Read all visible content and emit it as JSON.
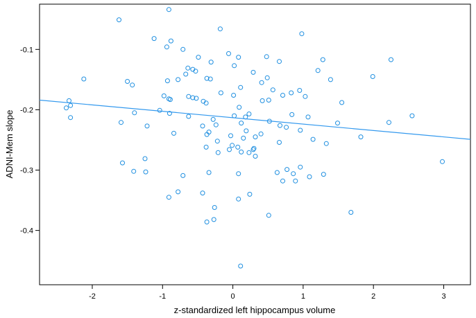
{
  "chart_data": {
    "type": "scatter",
    "title": "",
    "xlabel": "z-standardized left hippocampus volume",
    "ylabel": "ADNI-Mem slope",
    "xlim": [
      -2.75,
      3.38
    ],
    "ylim": [
      -0.49,
      -0.025
    ],
    "xticks": [
      -2,
      -1,
      0,
      1,
      2,
      3
    ],
    "yticks": [
      -0.1,
      -0.2,
      -0.3,
      -0.4
    ],
    "xtick_labels": [
      "-2",
      "-1",
      "0",
      "1",
      "2",
      "3"
    ],
    "ytick_labels": [
      "-0.1",
      "-0.2",
      "-0.3",
      "-0.4"
    ],
    "grid": false,
    "point_color": "#1f8fe0",
    "line_color": "#3399ee",
    "regression_line": {
      "x": [
        -2.75,
        3.38
      ],
      "y": [
        -0.184,
        -0.249
      ]
    },
    "points": [
      [
        -0.91,
        -0.034
      ],
      [
        -1.62,
        -0.051
      ],
      [
        -0.18,
        -0.066
      ],
      [
        0.98,
        -0.074
      ],
      [
        -1.12,
        -0.082
      ],
      [
        -0.88,
        -0.086
      ],
      [
        -0.94,
        -0.096
      ],
      [
        -0.71,
        -0.1
      ],
      [
        -0.06,
        -0.107
      ],
      [
        -0.49,
        -0.113
      ],
      [
        0.08,
        -0.113
      ],
      [
        0.48,
        -0.112
      ],
      [
        1.28,
        -0.117
      ],
      [
        2.25,
        -0.117
      ],
      [
        0.66,
        -0.12
      ],
      [
        -0.31,
        -0.121
      ],
      [
        0.02,
        -0.127
      ],
      [
        -0.64,
        -0.131
      ],
      [
        -0.57,
        -0.133
      ],
      [
        -0.53,
        -0.136
      ],
      [
        1.21,
        -0.135
      ],
      [
        0.29,
        -0.138
      ],
      [
        -0.67,
        -0.141
      ],
      [
        -2.12,
        -0.149
      ],
      [
        -1.5,
        -0.153
      ],
      [
        -0.78,
        -0.15
      ],
      [
        -0.37,
        -0.148
      ],
      [
        -0.32,
        -0.149
      ],
      [
        0.49,
        -0.147
      ],
      [
        1.39,
        -0.15
      ],
      [
        -0.93,
        -0.152
      ],
      [
        1.99,
        -0.145
      ],
      [
        -1.43,
        -0.159
      ],
      [
        0.11,
        -0.163
      ],
      [
        0.41,
        -0.155
      ],
      [
        0.57,
        -0.167
      ],
      [
        0.95,
        -0.168
      ],
      [
        -0.17,
        -0.172
      ],
      [
        0.83,
        -0.172
      ],
      [
        0.01,
        -0.176
      ],
      [
        0.71,
        -0.176
      ],
      [
        1.03,
        -0.178
      ],
      [
        -0.98,
        -0.177
      ],
      [
        -0.63,
        -0.178
      ],
      [
        -0.57,
        -0.18
      ],
      [
        -0.52,
        -0.181
      ],
      [
        -0.91,
        -0.182
      ],
      [
        -0.89,
        -0.183
      ],
      [
        0.42,
        -0.185
      ],
      [
        0.51,
        -0.184
      ],
      [
        -0.42,
        -0.186
      ],
      [
        -0.38,
        -0.189
      ],
      [
        1.55,
        -0.188
      ],
      [
        -2.33,
        -0.185
      ],
      [
        -2.31,
        -0.193
      ],
      [
        -2.37,
        -0.197
      ],
      [
        -1.04,
        -0.201
      ],
      [
        -1.4,
        -0.205
      ],
      [
        0.09,
        -0.196
      ],
      [
        -0.9,
        -0.206
      ],
      [
        0.23,
        -0.207
      ],
      [
        0.84,
        -0.208
      ],
      [
        -0.63,
        -0.211
      ],
      [
        0.02,
        -0.21
      ],
      [
        0.18,
        -0.212
      ],
      [
        1.07,
        -0.212
      ],
      [
        2.55,
        -0.21
      ],
      [
        -2.31,
        -0.213
      ],
      [
        -0.28,
        -0.216
      ],
      [
        0.52,
        -0.219
      ],
      [
        -1.59,
        -0.221
      ],
      [
        0.12,
        -0.222
      ],
      [
        1.49,
        -0.222
      ],
      [
        2.22,
        -0.221
      ],
      [
        -0.24,
        -0.225
      ],
      [
        -0.43,
        -0.227
      ],
      [
        -1.22,
        -0.227
      ],
      [
        0.67,
        -0.226
      ],
      [
        0.76,
        -0.229
      ],
      [
        0.96,
        -0.234
      ],
      [
        -0.34,
        -0.237
      ],
      [
        -0.84,
        -0.239
      ],
      [
        0.19,
        -0.235
      ],
      [
        0.4,
        -0.24
      ],
      [
        -0.37,
        -0.241
      ],
      [
        -0.03,
        -0.243
      ],
      [
        0.32,
        -0.245
      ],
      [
        1.82,
        -0.245
      ],
      [
        0.15,
        -0.247
      ],
      [
        1.14,
        -0.249
      ],
      [
        -0.22,
        -0.252
      ],
      [
        0.66,
        -0.254
      ],
      [
        1.33,
        -0.256
      ],
      [
        -0.01,
        -0.259
      ],
      [
        -0.38,
        -0.262
      ],
      [
        0.07,
        -0.262
      ],
      [
        0.3,
        -0.264
      ],
      [
        0.29,
        -0.266
      ],
      [
        -0.05,
        -0.266
      ],
      [
        -0.21,
        -0.271
      ],
      [
        0.12,
        -0.27
      ],
      [
        0.23,
        -0.271
      ],
      [
        0.32,
        -0.277
      ],
      [
        -1.25,
        -0.281
      ],
      [
        2.98,
        -0.286
      ],
      [
        -1.57,
        -0.288
      ],
      [
        0.96,
        -0.295
      ],
      [
        0.77,
        -0.299
      ],
      [
        -1.41,
        -0.302
      ],
      [
        -1.24,
        -0.303
      ],
      [
        -0.71,
        -0.309
      ],
      [
        -0.34,
        -0.304
      ],
      [
        0.08,
        -0.306
      ],
      [
        0.63,
        -0.304
      ],
      [
        0.86,
        -0.306
      ],
      [
        1.09,
        -0.311
      ],
      [
        1.29,
        -0.307
      ],
      [
        0.71,
        -0.318
      ],
      [
        0.89,
        -0.318
      ],
      [
        -0.78,
        -0.336
      ],
      [
        -0.91,
        -0.345
      ],
      [
        -0.43,
        -0.338
      ],
      [
        0.08,
        -0.348
      ],
      [
        0.24,
        -0.34
      ],
      [
        1.68,
        -0.37
      ],
      [
        -0.26,
        -0.362
      ],
      [
        0.51,
        -0.375
      ],
      [
        -0.27,
        -0.382
      ],
      [
        -0.37,
        -0.386
      ],
      [
        0.11,
        -0.459
      ]
    ]
  }
}
